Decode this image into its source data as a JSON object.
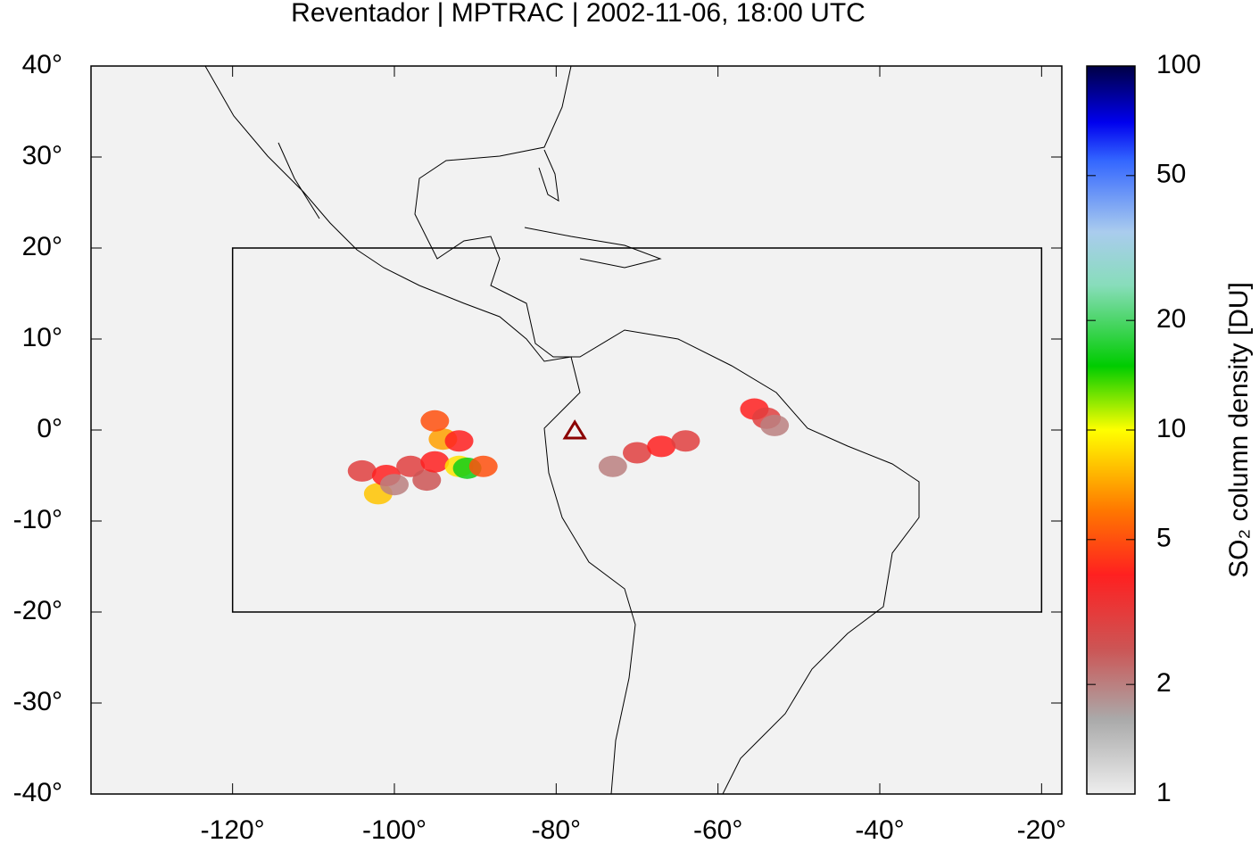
{
  "chart_data": {
    "type": "map",
    "title": "Reventador | MPTRAC | 2002-11-06, 18:00 UTC",
    "xlim": [
      -137.5,
      -17.5
    ],
    "ylim": [
      -40,
      40
    ],
    "xticks": [
      {
        "value": -120,
        "label": "-120°"
      },
      {
        "value": -100,
        "label": "-100°"
      },
      {
        "value": -80,
        "label": "-80°"
      },
      {
        "value": -60,
        "label": "-60°"
      },
      {
        "value": -40,
        "label": "-40°"
      },
      {
        "value": -20,
        "label": "-20°"
      }
    ],
    "yticks": [
      {
        "value": 40,
        "label": "40°"
      },
      {
        "value": 30,
        "label": "30°"
      },
      {
        "value": 20,
        "label": "20°"
      },
      {
        "value": 10,
        "label": "10°"
      },
      {
        "value": 0,
        "label": "0°"
      },
      {
        "value": -10,
        "label": "-10°"
      },
      {
        "value": -20,
        "label": "-20°"
      },
      {
        "value": -30,
        "label": "-30°"
      },
      {
        "value": -40,
        "label": "-40°"
      }
    ],
    "region": {
      "lon": [
        -120,
        -20
      ],
      "lat": [
        -20,
        20
      ]
    },
    "volcano": {
      "lon": -77.7,
      "lat": -0.1,
      "color": "#8b0000"
    },
    "plume": {
      "lon": [
        -104,
        -102,
        -101,
        -100,
        -98,
        -96,
        -95,
        -94,
        -95,
        -92,
        -92,
        -91,
        -89,
        -73,
        -70,
        -67,
        -64,
        -55.5,
        -54,
        -53
      ],
      "lat": [
        -4.5,
        -7,
        -5,
        -6,
        -4,
        -5.5,
        -3.5,
        -1,
        1,
        -1.2,
        -4,
        -4.2,
        -4,
        -4,
        -2.5,
        -1.8,
        -1.2,
        2.3,
        1.3,
        0.5
      ],
      "values": [
        3,
        8,
        4,
        2,
        3,
        2.5,
        4,
        7,
        5,
        4,
        9,
        16,
        5,
        2,
        3,
        4,
        3,
        4,
        3,
        2
      ]
    },
    "colorbar": {
      "label": "SO₂ column density [DU]",
      "lim": [
        1,
        100
      ],
      "log": true,
      "ticks": [
        1,
        2,
        5,
        10,
        20,
        50,
        100
      ],
      "colormap": [
        [
          1,
          "#eeeeee"
        ],
        [
          1.6,
          "#aaaaaa"
        ],
        [
          2.5,
          "#cc5555"
        ],
        [
          4,
          "#ff2020"
        ],
        [
          6,
          "#ff7700"
        ],
        [
          10,
          "#ffff00"
        ],
        [
          15,
          "#00cc00"
        ],
        [
          25,
          "#88ddbb"
        ],
        [
          35,
          "#aaccee"
        ],
        [
          55,
          "#3366ff"
        ],
        [
          70,
          "#0000ee"
        ],
        [
          100,
          "#000044"
        ]
      ]
    }
  }
}
